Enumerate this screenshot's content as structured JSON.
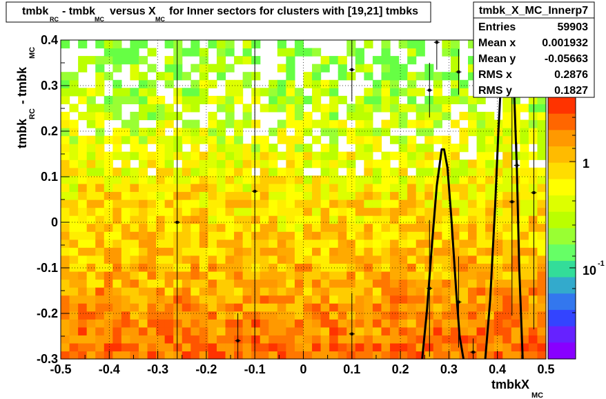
{
  "chart_data": {
    "type": "heatmap",
    "title": {
      "parts": [
        "tmbk",
        "RC",
        "- tmbk",
        "MC",
        "versus X",
        "MC",
        "for Inner sectors for clusters with [19,21] tmbks"
      ]
    },
    "xlabel": {
      "main": "tmbkX",
      "sub": "MC"
    },
    "ylabel": {
      "a": "tmbk",
      "a_sub": "RC",
      "b": "- tmbk",
      "b_sub": "MC"
    },
    "xlim": [
      -0.5,
      0.5
    ],
    "ylim": [
      -0.3,
      0.4
    ],
    "x_ticks": [
      -0.5,
      -0.4,
      -0.3,
      -0.2,
      -0.1,
      0,
      0.1,
      0.2,
      0.3,
      0.4,
      0.5
    ],
    "x_tick_labels": [
      "-0.5",
      "-0.4",
      "-0.3",
      "-0.2",
      "-0.1",
      "0",
      "0.1",
      "0.2",
      "0.3",
      "0.4",
      "0.5"
    ],
    "y_ticks": [
      -0.3,
      -0.2,
      -0.1,
      0,
      0.1,
      0.2,
      0.3,
      0.4
    ],
    "y_tick_labels": [
      "-0.3",
      "-0.2",
      "-0.1",
      "0",
      "0.1",
      "0.2",
      "0.3",
      "0.4"
    ],
    "grid": true,
    "z_scale": "log",
    "colorbar": {
      "labels": [
        {
          "base": "1",
          "exp": "",
          "value": 1
        },
        {
          "base": "10",
          "exp": "-1",
          "value": 0.1
        }
      ],
      "colors": [
        "#ff3300",
        "#ff6600",
        "#ff9900",
        "#ffbb00",
        "#ffdd00",
        "#ffff00",
        "#ddff00",
        "#bbff00",
        "#99ff33",
        "#66ff66",
        "#33dd99",
        "#33aacc",
        "#3377ee",
        "#3344ff",
        "#6622ff",
        "#8800ff"
      ]
    },
    "bins_x": 56,
    "bins_y": 40,
    "profile_points": [
      {
        "x": -0.26,
        "y": 0.0,
        "ey": 0.9
      },
      {
        "x": -0.135,
        "y": -0.26,
        "ey": 0.06
      },
      {
        "x": -0.1,
        "y": 0.068,
        "ey": 0.35
      },
      {
        "x": 0.1,
        "y": 0.335,
        "ey": 0.07
      },
      {
        "x": 0.1,
        "y": -0.245,
        "ey": 0.09
      },
      {
        "x": 0.26,
        "y": 0.29,
        "ey": 0.06
      },
      {
        "x": 0.26,
        "y": -0.145,
        "ey": 0.15
      },
      {
        "x": 0.275,
        "y": 0.395,
        "ey": 0.06
      },
      {
        "x": 0.32,
        "y": 0.33,
        "ey": 0.05
      },
      {
        "x": 0.32,
        "y": -0.175,
        "ey": 0.1
      },
      {
        "x": 0.35,
        "y": -0.285,
        "ey": 0.03
      },
      {
        "x": 0.43,
        "y": 0.045,
        "ey": 0.25
      },
      {
        "x": 0.44,
        "y": 0.125,
        "ey": 0.05
      },
      {
        "x": 0.475,
        "y": 0.065,
        "ey": 0.3
      }
    ],
    "fit_curves": [
      {
        "name": "",
        "x": [
          0.245,
          0.255,
          0.265,
          0.275,
          0.285,
          0.29,
          0.297,
          0.305,
          0.315,
          0.322,
          0.33
        ],
        "y": [
          -0.3,
          -0.19,
          -0.05,
          0.08,
          0.16,
          0.16,
          0.12,
          0.01,
          -0.15,
          -0.25,
          -0.3
        ]
      },
      {
        "name": "",
        "x": [
          0.375,
          0.385,
          0.395,
          0.402,
          0.41,
          0.415,
          0.42,
          0.425,
          0.432,
          0.44,
          0.445,
          0.452
        ],
        "y": [
          -0.3,
          -0.17,
          0.03,
          0.2,
          0.36,
          0.41,
          0.45,
          0.41,
          0.36,
          0.12,
          -0.1,
          -0.3
        ]
      }
    ]
  },
  "stats": {
    "name": "tmbk_X_MC_Innerp7",
    "rows": [
      {
        "label": "Entries",
        "value": "59903"
      },
      {
        "label": "Mean x",
        "value": "0.001932"
      },
      {
        "label": "Mean y",
        "value": "-0.05663"
      },
      {
        "label": "RMS x",
        "value": "0.2876"
      },
      {
        "label": "RMS y",
        "value": "0.1827"
      }
    ]
  }
}
